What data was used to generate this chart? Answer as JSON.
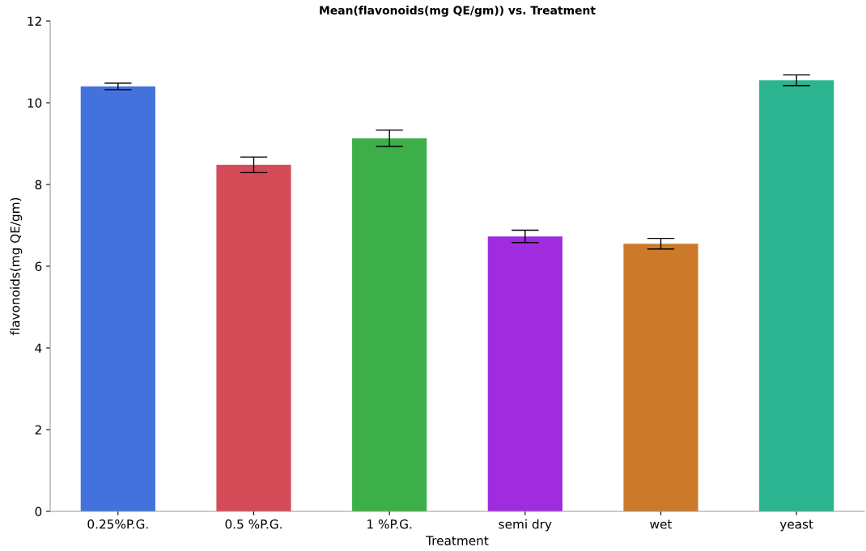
{
  "chart_data": {
    "type": "bar",
    "title": "Mean(flavonoids(mg QE/gm)) vs. Treatment",
    "xlabel": "Treatment",
    "ylabel": "flavonoids(mg QE/gm)",
    "categories": [
      "0.25%P.G.",
      "0.5 %P.G.",
      "1 %P.G.",
      "semi dry",
      "wet",
      "yeast"
    ],
    "values": [
      10.4,
      8.48,
      9.13,
      6.73,
      6.55,
      10.55
    ],
    "errors": [
      0.08,
      0.19,
      0.2,
      0.15,
      0.13,
      0.13
    ],
    "colors": [
      "#4472dc",
      "#d44b58",
      "#3daf48",
      "#a02ce0",
      "#cc7a2a",
      "#2bb48f"
    ],
    "ylim": [
      0,
      12
    ],
    "yticks": [
      0,
      2,
      4,
      6,
      8,
      10,
      12
    ],
    "grid": false,
    "legend": false
  }
}
